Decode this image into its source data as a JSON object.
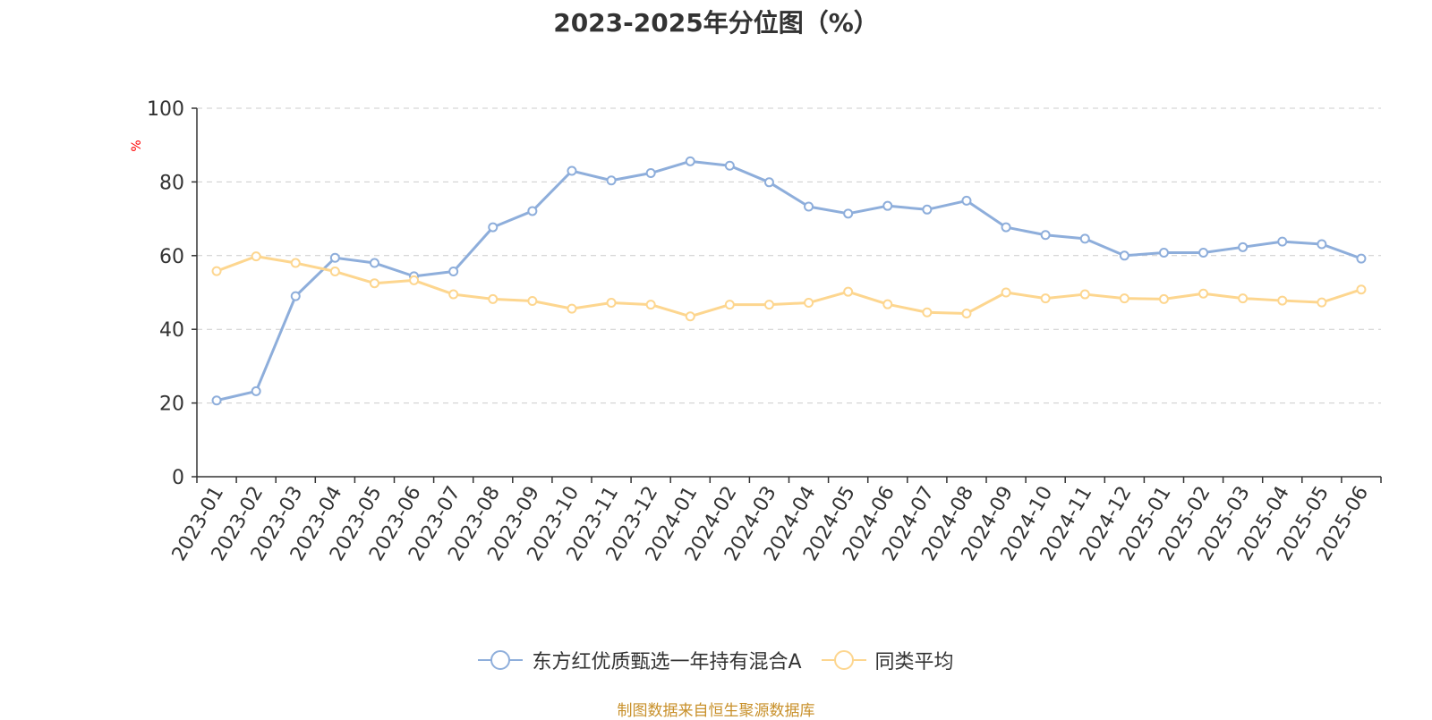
{
  "chart_data": {
    "type": "line",
    "title": "2023-2025年分位图（%）",
    "ylabel": "%",
    "ylim": [
      0,
      100
    ],
    "yticks": [
      "0",
      "20",
      "40",
      "60",
      "80",
      "100"
    ],
    "grid": true,
    "legend_position": "bottom-center",
    "categories": [
      "2023-01",
      "2023-02",
      "2023-03",
      "2023-04",
      "2023-05",
      "2023-06",
      "2023-07",
      "2023-08",
      "2023-09",
      "2023-10",
      "2023-11",
      "2023-12",
      "2024-01",
      "2024-02",
      "2024-03",
      "2024-04",
      "2024-05",
      "2024-06",
      "2024-07",
      "2024-08",
      "2024-09",
      "2024-10",
      "2024-11",
      "2024-12",
      "2025-01",
      "2025-02",
      "2025-03",
      "2025-04",
      "2025-05",
      "2025-06"
    ],
    "series": [
      {
        "name": "东方红优质甄选一年持有混合A",
        "color": "#8eaedb",
        "values": [
          20.7,
          23.2,
          49.0,
          59.4,
          58.0,
          54.4,
          55.7,
          67.7,
          72.1,
          83.0,
          80.4,
          82.4,
          85.6,
          84.4,
          79.9,
          73.3,
          71.4,
          73.5,
          72.5,
          74.9,
          67.7,
          65.6,
          64.6,
          60.0,
          60.8,
          60.8,
          62.3,
          63.8,
          63.1,
          59.2
        ]
      },
      {
        "name": "同类平均",
        "color": "#fdd68f",
        "values": [
          55.8,
          59.8,
          58.0,
          55.7,
          52.5,
          53.3,
          49.5,
          48.2,
          47.7,
          45.6,
          47.2,
          46.7,
          43.5,
          46.7,
          46.7,
          47.2,
          50.2,
          46.8,
          44.6,
          44.3,
          50.0,
          48.4,
          49.5,
          48.4,
          48.2,
          49.7,
          48.4,
          47.8,
          47.3,
          50.8
        ]
      }
    ]
  },
  "source": "制图数据来自恒生聚源数据库"
}
